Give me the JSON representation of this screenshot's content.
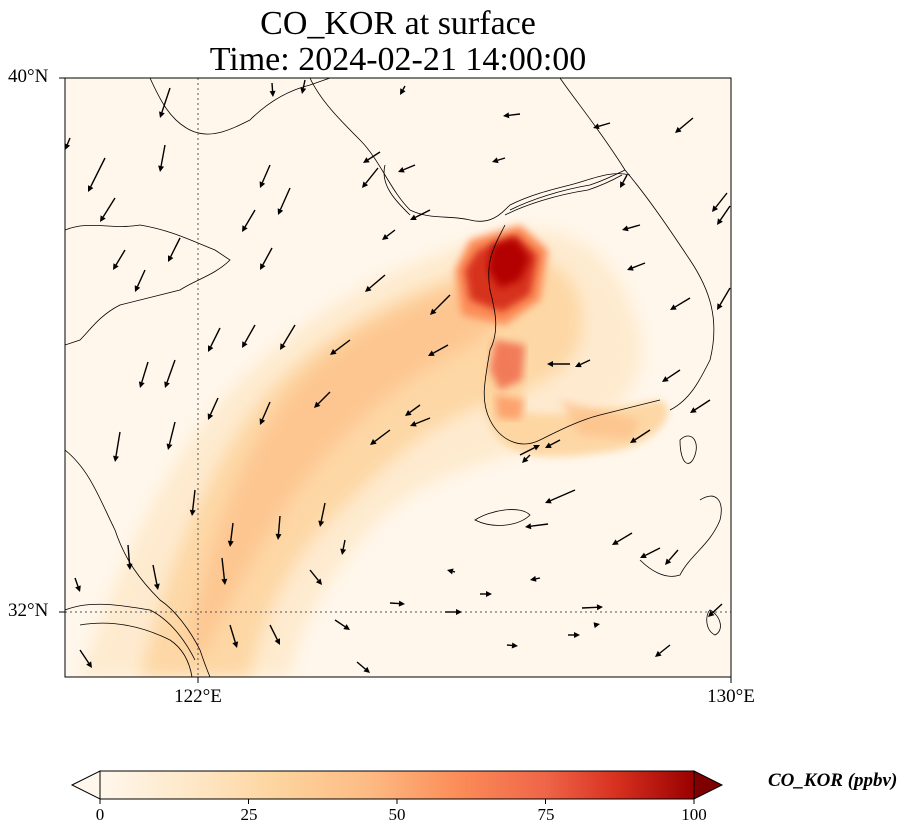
{
  "title": {
    "line1": "CO_KOR at surface",
    "line2": "Time: 2024-02-21 14:00:00"
  },
  "map": {
    "lat_labels": [
      "40°N",
      "32°N"
    ],
    "lon_labels": [
      "122°E",
      "130°E"
    ],
    "extent": {
      "lon_min": 120,
      "lon_max": 130,
      "lat_min": 31,
      "lat_max": 40
    },
    "gridlines": {
      "lons": [
        122
      ],
      "lats": [
        32
      ],
      "style": "dotted"
    }
  },
  "colorbar": {
    "label": "CO_KOR (ppbv)",
    "ticks": [
      "0",
      "25",
      "50",
      "75",
      "100"
    ],
    "range": [
      0,
      100
    ],
    "colormap": "OrRd",
    "extend": "both"
  },
  "colors": {
    "low": "#fff7ec",
    "mid": "#fdbb84",
    "high": "#d7301f",
    "max": "#7f0000"
  }
}
